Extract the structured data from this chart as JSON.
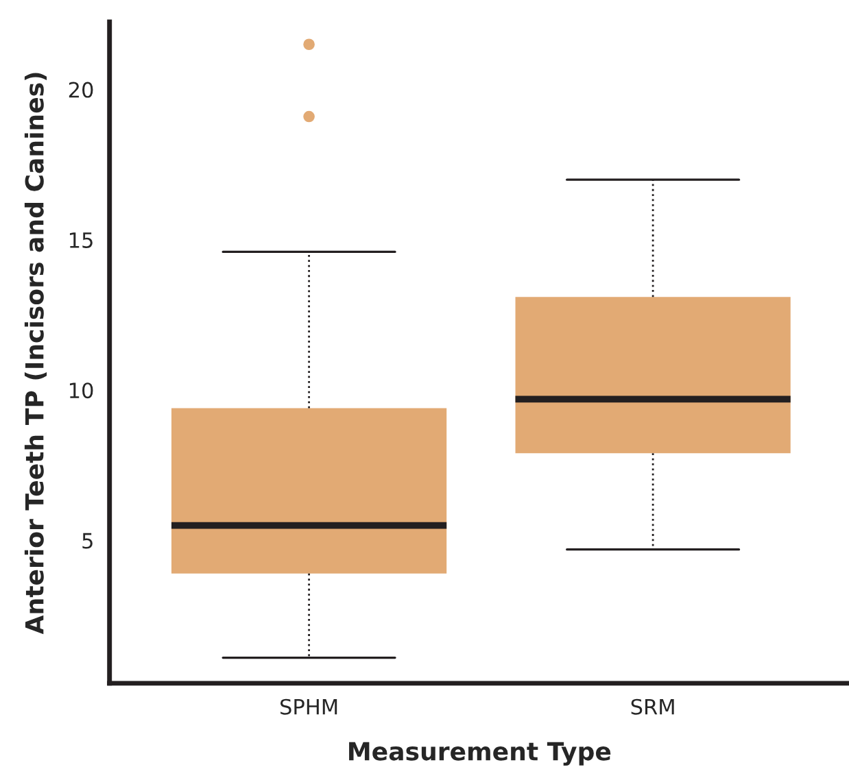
{
  "chart_data": {
    "type": "box",
    "xlabel": "Measurement Type",
    "ylabel": "Anterior Teeth TP (Incisors and Canines)",
    "categories": [
      "SPHM",
      "SRM"
    ],
    "color": "#e2aa74",
    "ylim": [
      0.25,
      22.25
    ],
    "yticks": [
      5,
      10,
      15,
      20
    ],
    "grid": false,
    "line_style": "dotted",
    "boxes": [
      {
        "low": 1.1,
        "q1": 3.9,
        "median": 5.5,
        "q3": 9.4,
        "high": 14.6,
        "outliers": [
          21.5,
          19.1
        ]
      },
      {
        "low": 4.7,
        "q1": 7.9,
        "median": 9.7,
        "q3": 13.1,
        "high": 17.0
      }
    ]
  }
}
